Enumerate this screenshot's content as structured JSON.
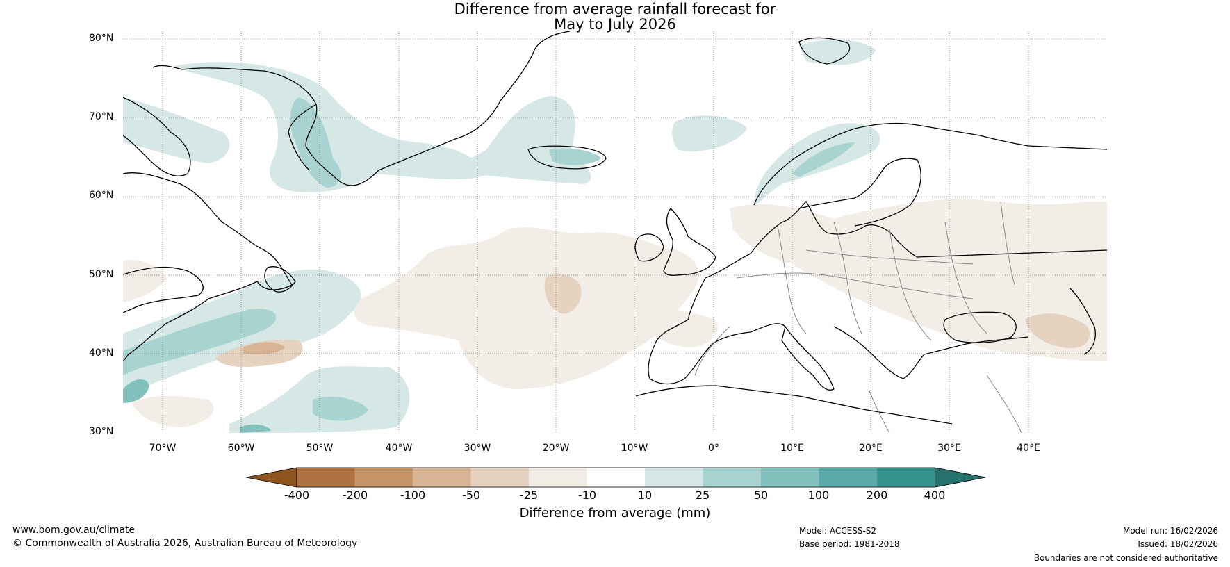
{
  "title": {
    "line1": "Difference from average rainfall forecast for",
    "line2": "May to July 2026"
  },
  "map": {
    "lat_labels": [
      "80°N",
      "70°N",
      "60°N",
      "50°N",
      "40°N",
      "30°N"
    ],
    "lon_labels": [
      "70°W",
      "60°W",
      "50°W",
      "40°W",
      "30°W",
      "20°W",
      "10°W",
      "0°",
      "10°E",
      "20°E",
      "30°E",
      "40°E"
    ],
    "extent": {
      "lon_min": -75,
      "lon_max": 50,
      "lat_min": 30,
      "lat_max": 81
    }
  },
  "colorbar": {
    "title": "Difference from average (mm)",
    "labels": [
      "-400",
      "-200",
      "-100",
      "-50",
      "-25",
      "-10",
      "10",
      "25",
      "50",
      "100",
      "200",
      "400"
    ],
    "colors": [
      "#8d5420",
      "#ae7240",
      "#c49466",
      "#d7b493",
      "#e6d2c0",
      "#f2ede7",
      "#ffffff",
      "#d5e8e6",
      "#a9d3d1",
      "#82c1be",
      "#5aaaa9",
      "#35928e",
      "#27716d"
    ]
  },
  "footer": {
    "website": "www.bom.gov.au/climate",
    "copyright": "© Commonwealth of Australia 2026, Australian Bureau of Meteorology",
    "model": "Model: ACCESS-S2",
    "base_period": "Base period: 1981-2018",
    "model_run": "Model run: 16/02/2026",
    "issued": "Issued: 18/02/2026",
    "disclaimer": "Boundaries are not considered authoritative"
  }
}
